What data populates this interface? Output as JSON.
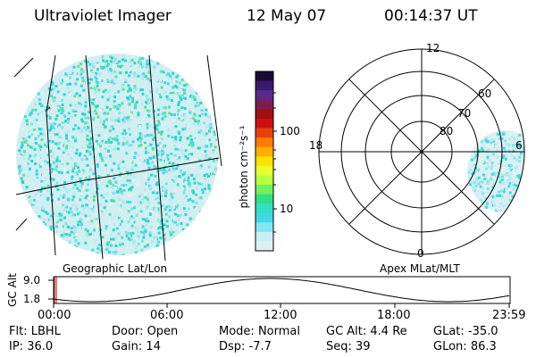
{
  "header": {
    "title": "Ultraviolet Imager",
    "date": "12 May 07",
    "time": "00:14:37 UT"
  },
  "colorbar": {
    "unit_label": "photon cm⁻²s⁻¹",
    "ticks": [
      "100",
      "10"
    ],
    "colors": [
      "#1a0a33",
      "#3a1a6e",
      "#5b2a8a",
      "#7a2050",
      "#a01010",
      "#cc1010",
      "#e64010",
      "#ff7a00",
      "#ffb000",
      "#ffe000",
      "#e8ff30",
      "#b8ff40",
      "#70f060",
      "#30e080",
      "#30e0c0",
      "#40d8e8",
      "#80e8f0",
      "#c8f0f4",
      "#e0f0f0"
    ]
  },
  "left_panel": {
    "caption": "Geographic Lat/Lon"
  },
  "right_panel": {
    "caption": "Apex MLat/MLT",
    "mlt_labels": {
      "top": "12",
      "left": "18",
      "right": "6",
      "bottom": "0"
    },
    "mlat_labels": [
      "60",
      "70",
      "80"
    ]
  },
  "altitude_plot": {
    "ylabel": "GC Alt",
    "yticks": [
      "9.0",
      "1.8"
    ],
    "xticks": [
      "00:00",
      "06:00",
      "12:00",
      "18:00",
      "23:59"
    ]
  },
  "status": {
    "row1": [
      {
        "label": "Flt:",
        "value": "LBHL"
      },
      {
        "label": "Door:",
        "value": "Open"
      },
      {
        "label": "Mode:",
        "value": "Normal"
      },
      {
        "label": "GC Alt:",
        "value": "4.4 Re"
      },
      {
        "label": "GLat:",
        "value": "-35.0"
      }
    ],
    "row2": [
      {
        "label": "IP:",
        "value": "36.0"
      },
      {
        "label": "Gain:",
        "value": "14"
      },
      {
        "label": "Dsp:",
        "value": "-7.7"
      },
      {
        "label": "Seq:",
        "value": "39"
      },
      {
        "label": "GLon:",
        "value": "86.3"
      }
    ]
  }
}
